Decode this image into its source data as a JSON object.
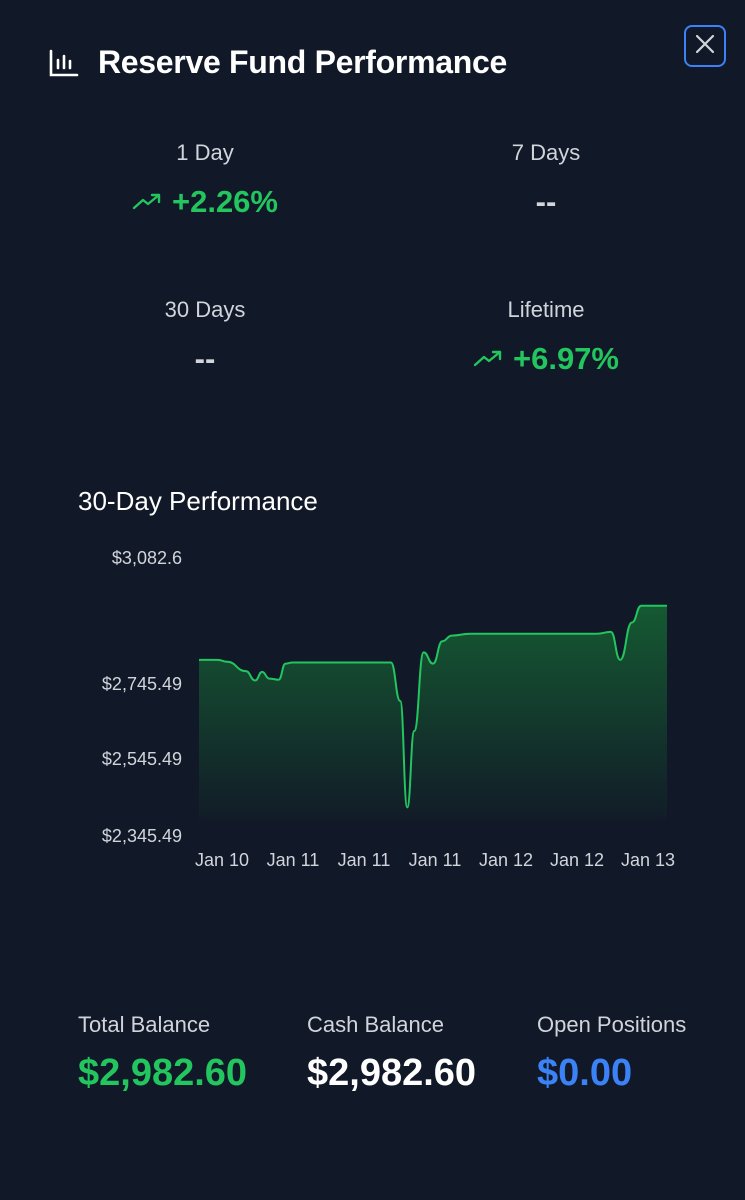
{
  "header": {
    "title": "Reserve Fund Performance",
    "icon": "bar-chart-icon",
    "close_icon": "close-icon"
  },
  "stats": [
    {
      "label": "1 Day",
      "value": "+2.26%",
      "trend": "up"
    },
    {
      "label": "7 Days",
      "value": "--",
      "trend": "none"
    },
    {
      "label": "30 Days",
      "value": "--",
      "trend": "none"
    },
    {
      "label": "Lifetime",
      "value": "+6.97%",
      "trend": "up"
    }
  ],
  "performance": {
    "title": "30-Day Performance"
  },
  "chart_data": {
    "type": "area",
    "y_tick_labels": [
      "$3,082.6",
      "$2,745.49",
      "$2,545.49",
      "$2,345.49"
    ],
    "y_ticks": [
      3082.6,
      2745.49,
      2545.49,
      2345.49
    ],
    "x_tick_labels": [
      "Jan 10",
      "Jan 11",
      "Jan 11",
      "Jan 11",
      "Jan 12",
      "Jan 12",
      "Jan 13"
    ],
    "ylim": [
      2345.49,
      3082.6
    ],
    "grid": false,
    "x": [
      0,
      0.4,
      0.6,
      1.0,
      1.2,
      1.35,
      1.5,
      1.7,
      1.85,
      2.0,
      2.1,
      4.1,
      4.3,
      4.45,
      4.6,
      4.8,
      5.0,
      5.2,
      5.4,
      5.8,
      8.5,
      8.8,
      9.0,
      9.25,
      9.45,
      9.6,
      10.0
    ],
    "values": [
      2810,
      2810,
      2805,
      2780,
      2755,
      2778,
      2760,
      2757,
      2800,
      2803,
      2803,
      2803,
      2700,
      2420,
      2620,
      2830,
      2800,
      2860,
      2875,
      2880,
      2880,
      2885,
      2810,
      2910,
      2955,
      2955,
      2955
    ],
    "colors": {
      "line": "#22c55e",
      "fill": "#166534"
    }
  },
  "balances": [
    {
      "label": "Total Balance",
      "value": "$2,982.60",
      "color": "#22c55e"
    },
    {
      "label": "Cash Balance",
      "value": "$2,982.60",
      "color": "#ffffff"
    },
    {
      "label": "Open Positions",
      "value": "$0.00",
      "color": "#3b82f6"
    }
  ]
}
